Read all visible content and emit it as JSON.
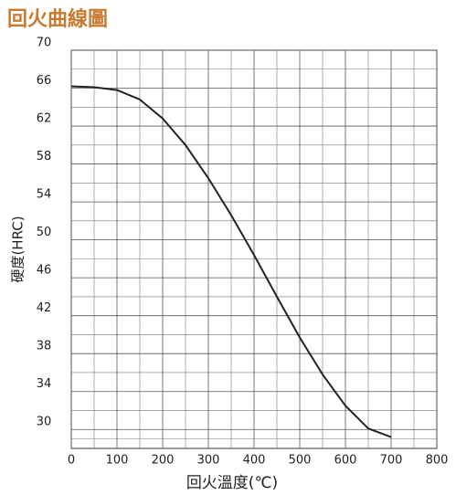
{
  "chart_data": {
    "type": "line",
    "title": "回火曲線圖",
    "xlabel": "回火溫度(℃)",
    "ylabel": "硬度(HRC)",
    "x": [
      0,
      50,
      100,
      150,
      200,
      250,
      300,
      350,
      400,
      450,
      500,
      550,
      600,
      650,
      700
    ],
    "series": [
      {
        "name": "硬度",
        "color": "#222222",
        "values": [
          66.2,
          66.1,
          65.8,
          64.8,
          62.8,
          60,
          56.5,
          52.6,
          48.4,
          44,
          39.7,
          35.8,
          32.5,
          30.1,
          29.2
        ]
      }
    ],
    "xlim": [
      0,
      800
    ],
    "xticks": [
      0,
      100,
      200,
      300,
      400,
      500,
      600,
      700,
      800
    ],
    "ylim": [
      28,
      70
    ],
    "yticks": [
      30,
      34,
      38,
      42,
      46,
      50,
      54,
      58,
      62,
      66,
      70
    ],
    "grid": true,
    "minor_grid": true
  }
}
